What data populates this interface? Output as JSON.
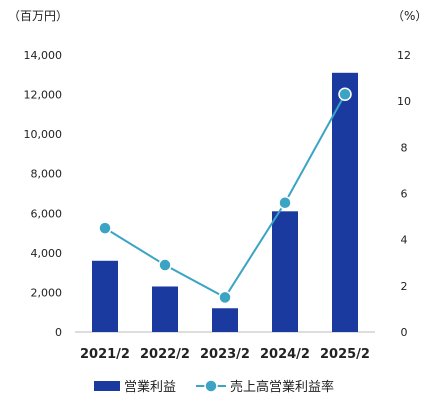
{
  "chart_data": {
    "type": "bar",
    "categories": [
      "2021/2",
      "2022/2",
      "2023/2",
      "2024/2",
      "2025/2"
    ],
    "left_axis": {
      "unit": "（百万円）",
      "ylim": [
        0,
        14000
      ],
      "ticks": [
        {
          "value": 0,
          "label": "0"
        },
        {
          "value": 2000,
          "label": "2,000"
        },
        {
          "value": 4000,
          "label": "4,000"
        },
        {
          "value": 6000,
          "label": "6,000"
        },
        {
          "value": 8000,
          "label": "8,000"
        },
        {
          "value": 10000,
          "label": "10,000"
        },
        {
          "value": 12000,
          "label": "12,000"
        },
        {
          "value": 14000,
          "label": "14,000"
        }
      ]
    },
    "right_axis": {
      "unit": "（%）",
      "ylim": [
        0,
        12
      ],
      "ticks": [
        {
          "value": 0,
          "label": "0"
        },
        {
          "value": 2,
          "label": "2"
        },
        {
          "value": 4,
          "label": "4"
        },
        {
          "value": 6,
          "label": "6"
        },
        {
          "value": 8,
          "label": "8"
        },
        {
          "value": 10,
          "label": "10"
        },
        {
          "value": 12,
          "label": "12"
        }
      ]
    },
    "series": [
      {
        "name": "営業利益",
        "type": "bar",
        "axis": "left",
        "color": "#1a3aa0",
        "values": [
          3600,
          2300,
          1200,
          6100,
          13100
        ]
      },
      {
        "name": "売上高営業利益率",
        "type": "line",
        "axis": "right",
        "color": "#3ba4c4",
        "values": [
          4.5,
          2.9,
          1.5,
          5.6,
          10.3
        ]
      }
    ],
    "grid": false,
    "legend_position": "bottom"
  }
}
